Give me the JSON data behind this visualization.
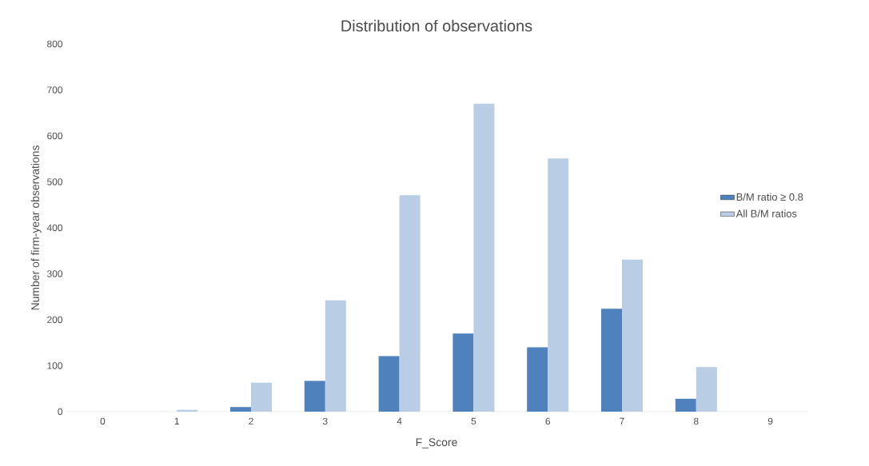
{
  "chart_data": {
    "type": "bar",
    "title": "Distribution of observations",
    "xlabel": "F_Score",
    "ylabel": "Number of firm-year observations",
    "categories": [
      "0",
      "1",
      "2",
      "3",
      "4",
      "5",
      "6",
      "7",
      "8",
      "9"
    ],
    "series": [
      {
        "name": "B/M ratio ≥ 0.8",
        "color": "#4f81bd",
        "values": [
          0,
          0,
          10,
          67,
          121,
          170,
          140,
          224,
          28,
          0
        ]
      },
      {
        "name": "All B/M ratios",
        "color": "#b9cde5",
        "values": [
          0,
          4,
          63,
          242,
          471,
          670,
          551,
          331,
          97,
          0
        ]
      }
    ],
    "ylim": [
      0,
      800
    ],
    "yticks": [
      0,
      100,
      200,
      300,
      400,
      500,
      600,
      700,
      800
    ],
    "grid": false,
    "legend": "right"
  }
}
